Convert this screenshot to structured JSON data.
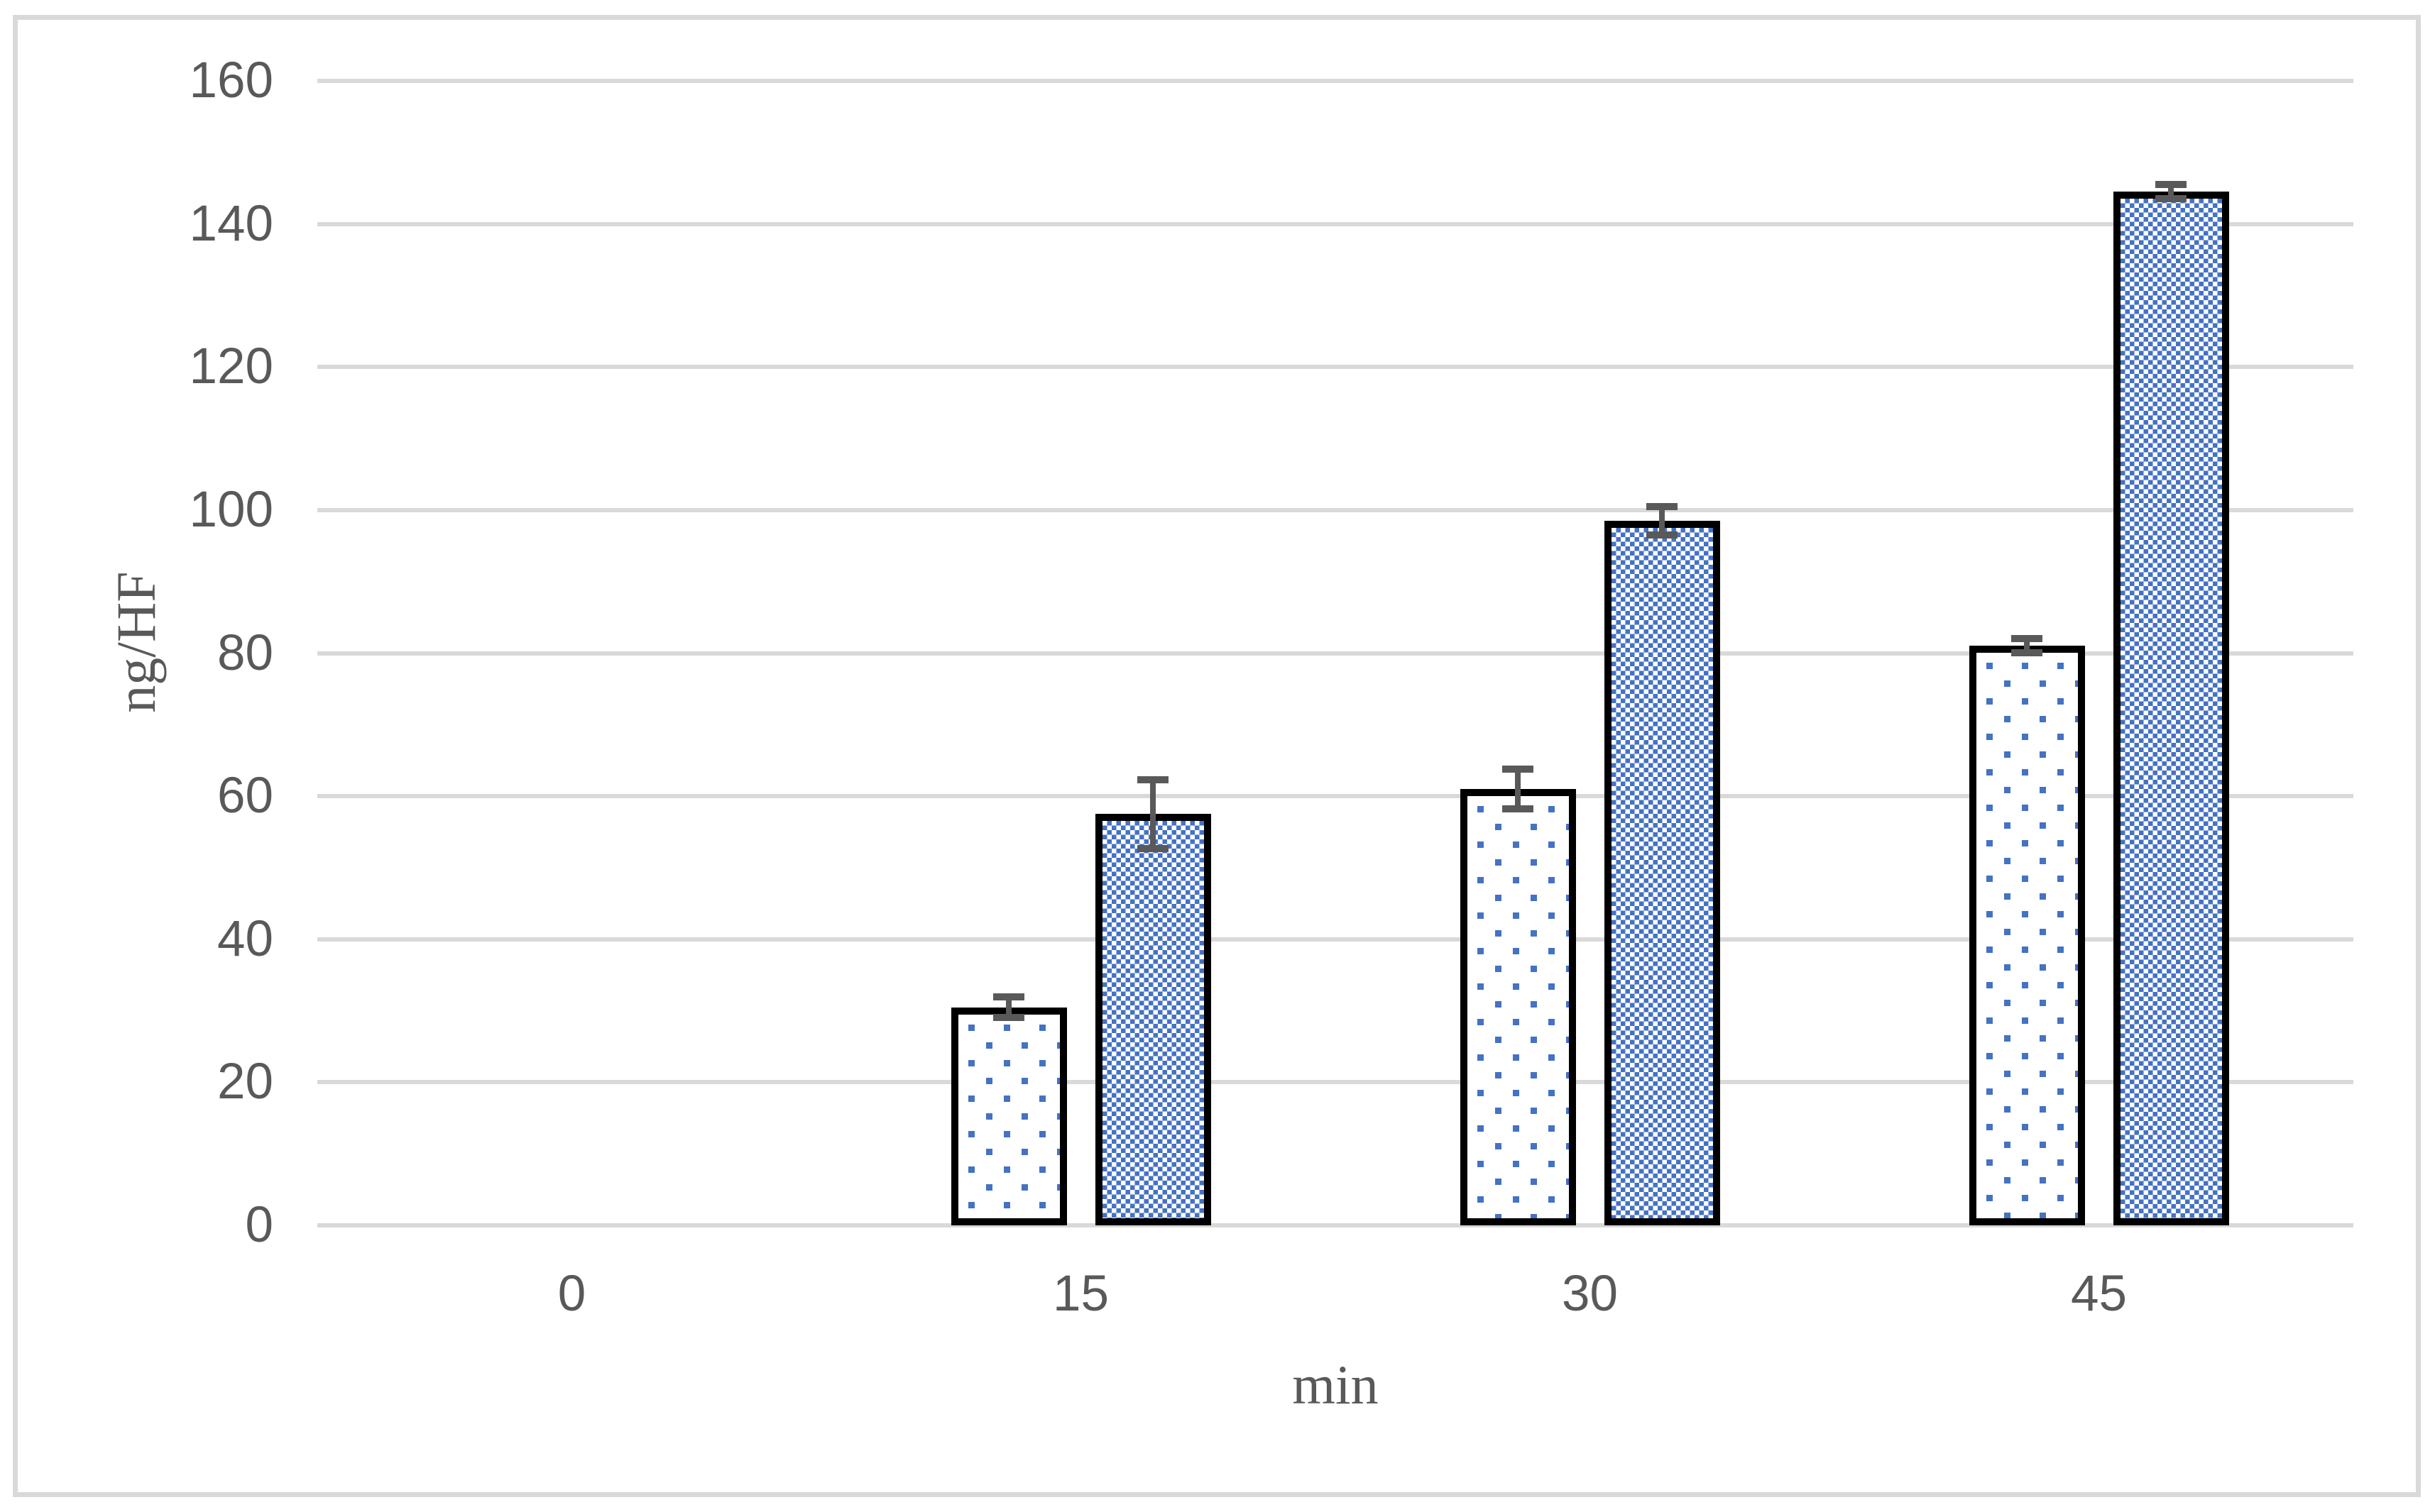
{
  "chart_data": {
    "type": "bar",
    "title": "",
    "xlabel": "min",
    "ylabel": "ng/HF",
    "categories": [
      "0",
      "15",
      "30",
      "45"
    ],
    "series": [
      {
        "name": "dotted-pattern-series",
        "pattern": "dots",
        "values": [
          0,
          30.5,
          61,
          81
        ],
        "errors": [
          0,
          0.9,
          2.3,
          0.5
        ]
      },
      {
        "name": "checkerboard-pattern-series",
        "pattern": "checker",
        "values": [
          0,
          57.5,
          98.5,
          144.5
        ],
        "errors": [
          0,
          4.3,
          1.5,
          0.5
        ]
      }
    ],
    "y_ticks": [
      0,
      20,
      40,
      60,
      80,
      100,
      120,
      140,
      160
    ],
    "ylim": [
      0,
      160
    ],
    "grid": true,
    "legend_position": "none",
    "error_bars": true,
    "colors": {
      "pattern_blue": "#4472c4",
      "bar_outline": "#000000",
      "error_bar": "#595959",
      "gridline": "#d9d9d9",
      "tick_text": "#595959",
      "frame_border": "#d9d9d9",
      "background": "#ffffff"
    }
  }
}
